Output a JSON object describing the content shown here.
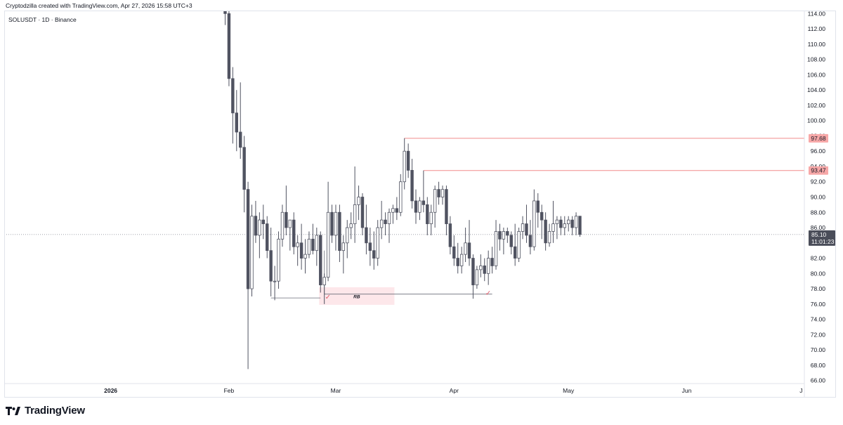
{
  "header": {
    "created_by": "Cryptodzilla created with TradingView.com, Apr 27, 2026 15:58 UTC+3",
    "symbol": "SOLUSDT · 1D · Binance"
  },
  "footer": {
    "brand": "TradingView",
    "logo_icon": "tradingview-logo-icon"
  },
  "colors": {
    "candle_body_up": "#ffffff",
    "candle_body_down": "#505361",
    "candle_outline": "#505361",
    "resistance_line": "#f28b8b",
    "resistance_label_bg": "#f7a8a8",
    "current_price_bg": "#4a4d59",
    "grid_text": "#131722",
    "rb_zone": "#fde7ea",
    "check_mark": "#e05b6a"
  },
  "chart_data": {
    "type": "candlestick",
    "title": "SOLUSDT · 1D · Binance",
    "y_axis": {
      "ticks": [
        "114.00",
        "112.00",
        "110.00",
        "108.00",
        "106.00",
        "104.00",
        "102.00",
        "100.00",
        "98.00",
        "96.00",
        "94.00",
        "92.00",
        "90.00",
        "88.00",
        "86.00",
        "84.00",
        "82.00",
        "80.00",
        "78.00",
        "76.00",
        "74.00",
        "72.00",
        "70.00",
        "68.00",
        "66.00"
      ],
      "ylim": [
        65.6,
        114.4
      ],
      "position": "right"
    },
    "x_axis": {
      "ticks": [
        {
          "label": "2026",
          "date": "2026-01-01"
        },
        {
          "label": "Feb",
          "date": "2026-02-01"
        },
        {
          "label": "Mar",
          "date": "2026-03-01"
        },
        {
          "label": "Apr",
          "date": "2026-04-01"
        },
        {
          "label": "May",
          "date": "2026-05-01"
        },
        {
          "label": "Jun",
          "date": "2026-06-01"
        },
        {
          "label": "J",
          "date": "2026-07-01"
        }
      ]
    },
    "candles": [
      {
        "date": "2026-01-31",
        "open": 118.0,
        "high": 118.0,
        "low": 112.5,
        "close": 114.0
      },
      {
        "date": "2026-02-01",
        "open": 114.0,
        "high": 115.0,
        "low": 104.5,
        "close": 105.5
      },
      {
        "date": "2026-02-02",
        "open": 105.5,
        "high": 107.0,
        "low": 97.0,
        "close": 101.0
      },
      {
        "date": "2026-02-03",
        "open": 101.0,
        "high": 104.0,
        "low": 96.0,
        "close": 98.5
      },
      {
        "date": "2026-02-04",
        "open": 98.5,
        "high": 105.0,
        "low": 95.0,
        "close": 96.5
      },
      {
        "date": "2026-02-05",
        "open": 96.5,
        "high": 98.0,
        "low": 88.0,
        "close": 91.0
      },
      {
        "date": "2026-02-06",
        "open": 91.0,
        "high": 92.0,
        "low": 67.5,
        "close": 78.0
      },
      {
        "date": "2026-02-07",
        "open": 78.0,
        "high": 89.0,
        "low": 77.0,
        "close": 87.5
      },
      {
        "date": "2026-02-08",
        "open": 87.5,
        "high": 89.5,
        "low": 84.0,
        "close": 85.0
      },
      {
        "date": "2026-02-09",
        "open": 85.0,
        "high": 88.0,
        "low": 82.0,
        "close": 87.0
      },
      {
        "date": "2026-02-10",
        "open": 87.0,
        "high": 89.0,
        "low": 84.5,
        "close": 86.5
      },
      {
        "date": "2026-02-11",
        "open": 86.5,
        "high": 87.5,
        "low": 82.0,
        "close": 83.0
      },
      {
        "date": "2026-02-12",
        "open": 83.0,
        "high": 86.0,
        "low": 77.0,
        "close": 79.0
      },
      {
        "date": "2026-02-13",
        "open": 79.0,
        "high": 81.0,
        "low": 76.5,
        "close": 79.0
      },
      {
        "date": "2026-02-14",
        "open": 79.0,
        "high": 85.5,
        "low": 78.0,
        "close": 84.5
      },
      {
        "date": "2026-02-15",
        "open": 84.5,
        "high": 89.0,
        "low": 83.5,
        "close": 88.0
      },
      {
        "date": "2026-02-16",
        "open": 88.0,
        "high": 91.5,
        "low": 85.0,
        "close": 86.0
      },
      {
        "date": "2026-02-17",
        "open": 86.0,
        "high": 87.0,
        "low": 83.0,
        "close": 87.0
      },
      {
        "date": "2026-02-18",
        "open": 87.0,
        "high": 88.0,
        "low": 82.5,
        "close": 83.5
      },
      {
        "date": "2026-02-19",
        "open": 83.5,
        "high": 85.0,
        "low": 81.0,
        "close": 84.0
      },
      {
        "date": "2026-02-20",
        "open": 84.0,
        "high": 86.5,
        "low": 80.5,
        "close": 82.0
      },
      {
        "date": "2026-02-21",
        "open": 82.0,
        "high": 84.5,
        "low": 80.0,
        "close": 82.5
      },
      {
        "date": "2026-02-22",
        "open": 82.5,
        "high": 85.5,
        "low": 82.0,
        "close": 84.5
      },
      {
        "date": "2026-02-23",
        "open": 84.5,
        "high": 86.5,
        "low": 82.5,
        "close": 83.0
      },
      {
        "date": "2026-02-24",
        "open": 83.0,
        "high": 86.0,
        "low": 81.0,
        "close": 85.0
      },
      {
        "date": "2026-02-25",
        "open": 85.0,
        "high": 85.5,
        "low": 77.5,
        "close": 78.5
      },
      {
        "date": "2026-02-26",
        "open": 78.5,
        "high": 80.0,
        "low": 76.0,
        "close": 79.5
      },
      {
        "date": "2026-02-27",
        "open": 79.5,
        "high": 92.0,
        "low": 79.0,
        "close": 88.0
      },
      {
        "date": "2026-02-28",
        "open": 88.0,
        "high": 89.0,
        "low": 84.0,
        "close": 85.0
      },
      {
        "date": "2026-03-01",
        "open": 85.0,
        "high": 89.0,
        "low": 83.0,
        "close": 88.0
      },
      {
        "date": "2026-03-02",
        "open": 88.0,
        "high": 89.0,
        "low": 81.5,
        "close": 83.0
      },
      {
        "date": "2026-03-03",
        "open": 83.0,
        "high": 85.0,
        "low": 80.0,
        "close": 84.0
      },
      {
        "date": "2026-03-04",
        "open": 84.0,
        "high": 87.0,
        "low": 82.0,
        "close": 86.0
      },
      {
        "date": "2026-03-05",
        "open": 86.0,
        "high": 88.0,
        "low": 84.5,
        "close": 86.5
      },
      {
        "date": "2026-03-06",
        "open": 86.5,
        "high": 94.0,
        "low": 84.0,
        "close": 89.0
      },
      {
        "date": "2026-03-07",
        "open": 89.0,
        "high": 91.5,
        "low": 87.0,
        "close": 90.0
      },
      {
        "date": "2026-03-08",
        "open": 90.0,
        "high": 90.5,
        "low": 85.0,
        "close": 86.0
      },
      {
        "date": "2026-03-09",
        "open": 86.0,
        "high": 89.0,
        "low": 82.5,
        "close": 84.0
      },
      {
        "date": "2026-03-10",
        "open": 84.0,
        "high": 86.0,
        "low": 81.0,
        "close": 83.0
      },
      {
        "date": "2026-03-11",
        "open": 83.0,
        "high": 85.5,
        "low": 80.5,
        "close": 82.0
      },
      {
        "date": "2026-03-12",
        "open": 82.0,
        "high": 87.0,
        "low": 81.0,
        "close": 86.0
      },
      {
        "date": "2026-03-13",
        "open": 86.0,
        "high": 89.5,
        "low": 84.5,
        "close": 87.0
      },
      {
        "date": "2026-03-14",
        "open": 87.0,
        "high": 88.0,
        "low": 85.0,
        "close": 86.5
      },
      {
        "date": "2026-03-15",
        "open": 86.5,
        "high": 88.5,
        "low": 84.0,
        "close": 88.0
      },
      {
        "date": "2026-03-16",
        "open": 88.0,
        "high": 89.0,
        "low": 86.5,
        "close": 88.5
      },
      {
        "date": "2026-03-17",
        "open": 88.5,
        "high": 90.0,
        "low": 87.0,
        "close": 88.0
      },
      {
        "date": "2026-03-18",
        "open": 88.0,
        "high": 93.0,
        "low": 87.5,
        "close": 92.0
      },
      {
        "date": "2026-03-19",
        "open": 92.0,
        "high": 97.7,
        "low": 91.0,
        "close": 96.0
      },
      {
        "date": "2026-03-20",
        "open": 96.0,
        "high": 97.0,
        "low": 92.5,
        "close": 93.5
      },
      {
        "date": "2026-03-21",
        "open": 93.5,
        "high": 95.0,
        "low": 88.5,
        "close": 89.5
      },
      {
        "date": "2026-03-22",
        "open": 89.5,
        "high": 91.0,
        "low": 86.5,
        "close": 88.0
      },
      {
        "date": "2026-03-23",
        "open": 88.0,
        "high": 90.0,
        "low": 87.0,
        "close": 89.5
      },
      {
        "date": "2026-03-24",
        "open": 89.5,
        "high": 93.47,
        "low": 88.0,
        "close": 89.0
      },
      {
        "date": "2026-03-25",
        "open": 89.0,
        "high": 90.0,
        "low": 85.0,
        "close": 86.5
      },
      {
        "date": "2026-03-26",
        "open": 86.5,
        "high": 89.0,
        "low": 85.0,
        "close": 88.0
      },
      {
        "date": "2026-03-27",
        "open": 88.0,
        "high": 91.5,
        "low": 86.0,
        "close": 91.0
      },
      {
        "date": "2026-03-28",
        "open": 91.0,
        "high": 92.0,
        "low": 89.0,
        "close": 90.0
      },
      {
        "date": "2026-03-29",
        "open": 90.0,
        "high": 91.5,
        "low": 89.0,
        "close": 91.0
      },
      {
        "date": "2026-03-30",
        "open": 91.0,
        "high": 91.5,
        "low": 85.0,
        "close": 86.5
      },
      {
        "date": "2026-03-31",
        "open": 86.5,
        "high": 87.5,
        "low": 82.5,
        "close": 83.5
      },
      {
        "date": "2026-04-01",
        "open": 83.5,
        "high": 85.0,
        "low": 81.0,
        "close": 82.0
      },
      {
        "date": "2026-04-02",
        "open": 82.0,
        "high": 84.0,
        "low": 80.0,
        "close": 81.0
      },
      {
        "date": "2026-04-03",
        "open": 81.0,
        "high": 83.5,
        "low": 80.0,
        "close": 82.5
      },
      {
        "date": "2026-04-04",
        "open": 82.5,
        "high": 86.0,
        "low": 81.5,
        "close": 84.0
      },
      {
        "date": "2026-04-05",
        "open": 84.0,
        "high": 87.0,
        "low": 81.0,
        "close": 82.0
      },
      {
        "date": "2026-04-06",
        "open": 82.0,
        "high": 82.5,
        "low": 76.7,
        "close": 78.5
      },
      {
        "date": "2026-04-07",
        "open": 78.5,
        "high": 81.0,
        "low": 78.0,
        "close": 80.5
      },
      {
        "date": "2026-04-08",
        "open": 80.5,
        "high": 82.5,
        "low": 79.5,
        "close": 81.0
      },
      {
        "date": "2026-04-09",
        "open": 81.0,
        "high": 82.0,
        "low": 79.0,
        "close": 80.0
      },
      {
        "date": "2026-04-10",
        "open": 80.0,
        "high": 83.0,
        "low": 78.5,
        "close": 82.0
      },
      {
        "date": "2026-04-11",
        "open": 82.0,
        "high": 83.5,
        "low": 80.0,
        "close": 81.0
      },
      {
        "date": "2026-04-12",
        "open": 81.0,
        "high": 87.0,
        "low": 80.5,
        "close": 85.5
      },
      {
        "date": "2026-04-13",
        "open": 85.5,
        "high": 86.5,
        "low": 83.0,
        "close": 84.5
      },
      {
        "date": "2026-04-14",
        "open": 84.5,
        "high": 86.0,
        "low": 82.5,
        "close": 85.5
      },
      {
        "date": "2026-04-15",
        "open": 85.5,
        "high": 86.0,
        "low": 84.0,
        "close": 85.0
      },
      {
        "date": "2026-04-16",
        "open": 85.0,
        "high": 85.5,
        "low": 82.5,
        "close": 83.5
      },
      {
        "date": "2026-04-17",
        "open": 83.5,
        "high": 86.5,
        "low": 81.0,
        "close": 82.0
      },
      {
        "date": "2026-04-18",
        "open": 82.0,
        "high": 86.0,
        "low": 81.5,
        "close": 85.5
      },
      {
        "date": "2026-04-19",
        "open": 85.5,
        "high": 87.5,
        "low": 84.5,
        "close": 86.5
      },
      {
        "date": "2026-04-20",
        "open": 86.5,
        "high": 89.0,
        "low": 84.0,
        "close": 85.0
      },
      {
        "date": "2026-04-21",
        "open": 85.0,
        "high": 87.0,
        "low": 82.5,
        "close": 83.5
      },
      {
        "date": "2026-04-22",
        "open": 83.5,
        "high": 91.0,
        "low": 83.0,
        "close": 89.5
      },
      {
        "date": "2026-04-23",
        "open": 89.5,
        "high": 90.5,
        "low": 86.0,
        "close": 88.0
      },
      {
        "date": "2026-04-24",
        "open": 88.0,
        "high": 89.0,
        "low": 84.5,
        "close": 87.0
      },
      {
        "date": "2026-04-25",
        "open": 87.0,
        "high": 88.0,
        "low": 83.0,
        "close": 84.0
      },
      {
        "date": "2026-04-26",
        "open": 84.0,
        "high": 86.5,
        "low": 83.5,
        "close": 85.5
      },
      {
        "date": "2026-04-27",
        "open": 85.5,
        "high": 89.5,
        "low": 84.0,
        "close": 86.5
      },
      {
        "date": "2026-04-28",
        "open": 86.5,
        "high": 87.5,
        "low": 84.5,
        "close": 87.0
      },
      {
        "date": "2026-04-29",
        "open": 87.0,
        "high": 87.5,
        "low": 85.0,
        "close": 86.0
      },
      {
        "date": "2026-04-30",
        "open": 86.0,
        "high": 87.5,
        "low": 85.0,
        "close": 86.5
      },
      {
        "date": "2026-05-01",
        "open": 86.5,
        "high": 87.5,
        "low": 85.5,
        "close": 87.0
      },
      {
        "date": "2026-05-02",
        "open": 87.0,
        "high": 87.5,
        "low": 85.0,
        "close": 86.0
      },
      {
        "date": "2026-05-03",
        "open": 86.0,
        "high": 88.0,
        "low": 85.0,
        "close": 87.5
      },
      {
        "date": "2026-05-04",
        "open": 87.5,
        "high": 87.5,
        "low": 84.8,
        "close": 85.1
      }
    ],
    "current_price": {
      "value": 85.1,
      "label": "85.10",
      "countdown": "11:01:23"
    },
    "horizontal_levels": [
      {
        "name": "resistance-high",
        "value": 97.68,
        "label": "97.68",
        "from_date": "2026-03-19"
      },
      {
        "name": "resistance-low",
        "value": 93.47,
        "label": "93.47",
        "from_date": "2026-03-24"
      }
    ],
    "support_lines": [
      {
        "value": 76.8,
        "from_date": "2026-02-12",
        "to_date": "2026-02-25"
      },
      {
        "value": 77.3,
        "from_date": "2026-02-26",
        "to_date": "2026-04-11"
      }
    ],
    "annotations": [
      {
        "type": "box",
        "label": "RB",
        "from_date": "2026-02-25",
        "to_date": "2026-03-16",
        "y_top": 78.2,
        "y_bottom": 75.9
      },
      {
        "type": "check",
        "label": "✓",
        "date": "2026-02-26",
        "value": 76.8
      },
      {
        "type": "check",
        "label": "✓",
        "date": "2026-04-09",
        "value": 77.3
      }
    ]
  }
}
